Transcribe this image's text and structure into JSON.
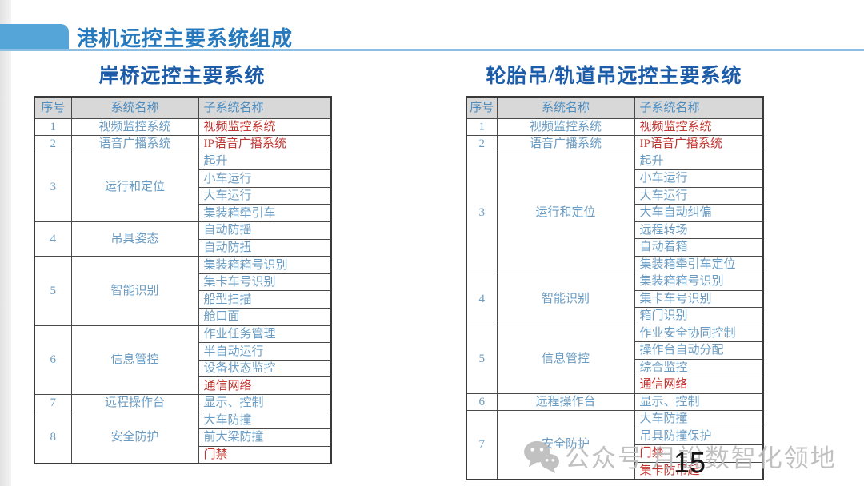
{
  "slide": {
    "title": "港机远控主要系统组成",
    "page_number": "15",
    "watermark": {
      "icon": "wechat-icon",
      "text": "公众号 月說数智化领地"
    }
  },
  "colors": {
    "accent_tab": "#55a5d9",
    "header_line": "#8fbee3",
    "main_title_blue": "#2679bc",
    "table_title_blue": "#1d5ca8",
    "table_header_bg": "#d8d8d8",
    "table_header_text": "#4d8dc0",
    "cell_text_blue": "#6a9cc3",
    "cell_text_red": "#c13530",
    "watermark_gray": "#bcbcbc"
  },
  "tables": [
    {
      "title": "岸桥远控主要系统",
      "headers": [
        "序号",
        "系统名称",
        "子系统名称"
      ],
      "rows": [
        {
          "no": "1",
          "system": "视频监控系统",
          "subsystems": [
            {
              "label": "视频监控系统",
              "red": true
            }
          ]
        },
        {
          "no": "2",
          "system": "语音广播系统",
          "subsystems": [
            {
              "label": "IP语音广播系统",
              "red": true
            }
          ]
        },
        {
          "no": "3",
          "system": "运行和定位",
          "subsystems": [
            {
              "label": "起升"
            },
            {
              "label": "小车运行"
            },
            {
              "label": "大车运行"
            },
            {
              "label": "集装箱牵引车"
            }
          ]
        },
        {
          "no": "4",
          "system": "吊具姿态",
          "subsystems": [
            {
              "label": "自动防摇"
            },
            {
              "label": "自动防扭"
            }
          ]
        },
        {
          "no": "5",
          "system": "智能识别",
          "subsystems": [
            {
              "label": "集装箱箱号识别"
            },
            {
              "label": "集卡车号识别"
            },
            {
              "label": "船型扫描"
            },
            {
              "label": "舱口面"
            }
          ]
        },
        {
          "no": "6",
          "system": "信息管控",
          "subsystems": [
            {
              "label": "作业任务管理"
            },
            {
              "label": "半自动运行"
            },
            {
              "label": "设备状态监控"
            },
            {
              "label": "通信网络",
              "red": true
            }
          ]
        },
        {
          "no": "7",
          "system": "远程操作台",
          "subsystems": [
            {
              "label": "显示、控制"
            }
          ]
        },
        {
          "no": "8",
          "system": "安全防护",
          "subsystems": [
            {
              "label": "大车防撞"
            },
            {
              "label": "前大梁防撞"
            },
            {
              "label": "门禁",
              "red": true
            }
          ]
        }
      ]
    },
    {
      "title": "轮胎吊/轨道吊远控主要系统",
      "headers": [
        "序号",
        "系统名称",
        "子系统名称"
      ],
      "rows": [
        {
          "no": "1",
          "system": "视频监控系统",
          "subsystems": [
            {
              "label": "视频监控系统",
              "red": true
            }
          ]
        },
        {
          "no": "2",
          "system": "语音广播系统",
          "subsystems": [
            {
              "label": "IP语音广播系统",
              "red": true
            }
          ]
        },
        {
          "no": "3",
          "system": "运行和定位",
          "subsystems": [
            {
              "label": "起升"
            },
            {
              "label": "小车运行"
            },
            {
              "label": "大车运行"
            },
            {
              "label": "大车自动纠偏"
            },
            {
              "label": "远程转场"
            },
            {
              "label": "自动着箱"
            },
            {
              "label": "集装箱牵引车定位"
            }
          ]
        },
        {
          "no": "4",
          "system": "智能识别",
          "subsystems": [
            {
              "label": "集装箱箱号识别"
            },
            {
              "label": "集卡车号识别"
            },
            {
              "label": "箱门识别"
            }
          ]
        },
        {
          "no": "5",
          "system": "信息管控",
          "subsystems": [
            {
              "label": "作业安全协同控制"
            },
            {
              "label": "操作台自动分配"
            },
            {
              "label": "综合监控"
            },
            {
              "label": "通信网络",
              "red": true
            }
          ]
        },
        {
          "no": "6",
          "system": "远程操作台",
          "subsystems": [
            {
              "label": "显示、控制"
            }
          ]
        },
        {
          "no": "7",
          "system": "安全防护",
          "subsystems": [
            {
              "label": "大车防撞"
            },
            {
              "label": "吊具防撞保护"
            },
            {
              "label": "门禁",
              "red": true
            },
            {
              "label": "集卡防吊起",
              "red": true
            }
          ]
        }
      ]
    }
  ]
}
